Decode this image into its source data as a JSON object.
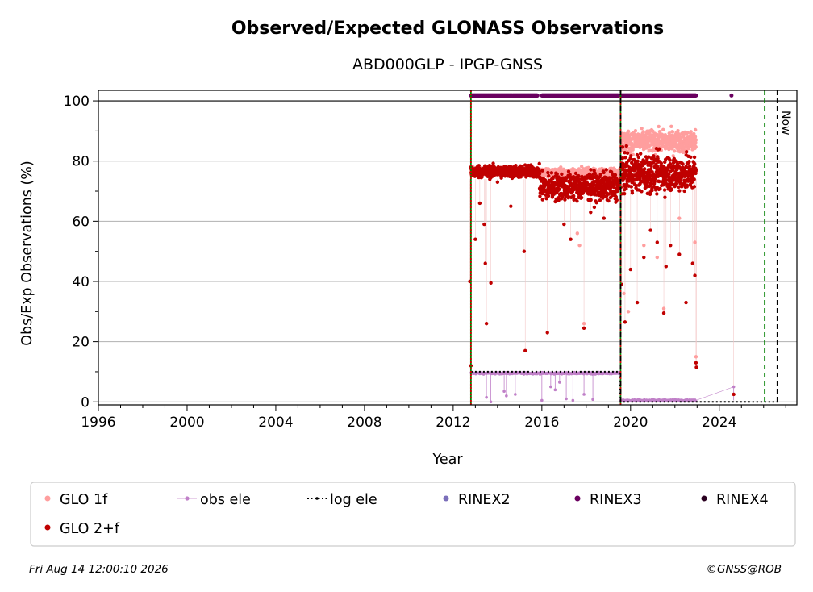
{
  "chart_data": {
    "type": "scatter",
    "title": "Observed/Expected GLONASS Observations",
    "subtitle": "ABD000GLP - IPGP-GNSS",
    "xlabel": "Year",
    "ylabel": "Obs/Exp Observations (%)",
    "xlim": [
      1996,
      2027.5
    ],
    "ylim": [
      -1,
      103.5
    ],
    "x_ticks": [
      1996,
      2000,
      2004,
      2008,
      2012,
      2016,
      2020,
      2024
    ],
    "y_ticks": [
      0,
      20,
      40,
      60,
      80,
      100
    ],
    "grid": "y-major",
    "reference_line_y": 100,
    "event_lines": [
      {
        "x": 2012.8,
        "color": "#008000",
        "style": "solid"
      },
      {
        "x": 2012.8,
        "color": "#cc0000",
        "style": "dotted"
      },
      {
        "x": 2019.55,
        "color": "#008000",
        "style": "solid"
      },
      {
        "x": 2019.55,
        "color": "#cc0000",
        "style": "dotted"
      },
      {
        "x": 2019.55,
        "color": "#000000",
        "style": "dashed"
      },
      {
        "x": 2026.05,
        "color": "#008000",
        "style": "dashed"
      },
      {
        "x": 2026.62,
        "color": "#000000",
        "style": "dashed",
        "label": "Now"
      }
    ],
    "series": [
      {
        "name": "GLO 1f",
        "color": "#ff9e9e",
        "marker": "dot",
        "segments": [
          {
            "x0": 2012.8,
            "x1": 2015.9,
            "y": 76.5,
            "spread": 1.2
          },
          {
            "x0": 2015.9,
            "x1": 2019.5,
            "y": 76.0,
            "spread": 1.5
          },
          {
            "x0": 2019.55,
            "x1": 2022.95,
            "y": 86.5,
            "spread": 3.5
          }
        ],
        "outliers": [
          [
            2016.2,
            68
          ],
          [
            2017.6,
            56
          ],
          [
            2017.7,
            52
          ],
          [
            2017.9,
            26
          ],
          [
            2019.7,
            36
          ],
          [
            2019.9,
            30
          ],
          [
            2020.6,
            52
          ],
          [
            2021.2,
            48
          ],
          [
            2021.5,
            31
          ],
          [
            2022.2,
            61
          ],
          [
            2022.9,
            53
          ],
          [
            2022.95,
            15
          ]
        ]
      },
      {
        "name": "GLO 2+f",
        "color": "#c00000",
        "marker": "dot",
        "segments": [
          {
            "x0": 2012.8,
            "x1": 2015.9,
            "y": 76.5,
            "spread": 2.0
          },
          {
            "x0": 2015.9,
            "x1": 2019.5,
            "y": 71.5,
            "spread": 4.5
          },
          {
            "x0": 2019.55,
            "x1": 2022.95,
            "y": 76.0,
            "spread": 6.0
          }
        ],
        "outliers": [
          [
            2012.75,
            40
          ],
          [
            2012.8,
            12
          ],
          [
            2013.0,
            54
          ],
          [
            2013.2,
            66
          ],
          [
            2013.4,
            59
          ],
          [
            2013.45,
            46
          ],
          [
            2013.5,
            26
          ],
          [
            2013.7,
            39.5
          ],
          [
            2014.0,
            73
          ],
          [
            2014.6,
            65
          ],
          [
            2015.2,
            50
          ],
          [
            2015.25,
            17
          ],
          [
            2016.25,
            23
          ],
          [
            2017.0,
            59
          ],
          [
            2017.3,
            54
          ],
          [
            2017.9,
            24.5
          ],
          [
            2018.2,
            63
          ],
          [
            2018.8,
            61
          ],
          [
            2019.6,
            39
          ],
          [
            2019.75,
            26.5
          ],
          [
            2020.0,
            44
          ],
          [
            2020.3,
            33
          ],
          [
            2020.6,
            48
          ],
          [
            2020.9,
            57
          ],
          [
            2021.2,
            53
          ],
          [
            2021.5,
            29.5
          ],
          [
            2021.6,
            45
          ],
          [
            2021.8,
            52
          ],
          [
            2022.2,
            49
          ],
          [
            2022.5,
            33
          ],
          [
            2022.8,
            46
          ],
          [
            2022.9,
            42
          ],
          [
            2022.95,
            13
          ],
          [
            2022.97,
            11.5
          ],
          [
            2024.65,
            2.5
          ]
        ]
      },
      {
        "name": "obs ele",
        "color": "#c080c8",
        "marker": "line-dot",
        "segments": [
          {
            "x0": 2012.8,
            "x1": 2019.5,
            "y": 9.5,
            "spread": 0.6
          },
          {
            "x0": 2019.55,
            "x1": 2022.95,
            "y": 0.5,
            "spread": 0.5
          }
        ],
        "outliers": [
          [
            2013.5,
            1.5
          ],
          [
            2013.7,
            0
          ],
          [
            2014.3,
            3.5
          ],
          [
            2014.4,
            2
          ],
          [
            2014.8,
            2.5
          ],
          [
            2016.0,
            0.5
          ],
          [
            2016.4,
            5
          ],
          [
            2016.6,
            4
          ],
          [
            2016.8,
            6.5
          ],
          [
            2017.1,
            1
          ],
          [
            2017.4,
            0.5
          ],
          [
            2017.9,
            2.5
          ],
          [
            2018.3,
            0.8
          ],
          [
            2024.65,
            5
          ]
        ]
      },
      {
        "name": "log ele",
        "color": "#000000",
        "marker": "dotted-line",
        "steps": [
          [
            2012.8,
            10
          ],
          [
            2019.5,
            10
          ],
          [
            2019.55,
            0
          ],
          [
            2026.62,
            0
          ]
        ]
      },
      {
        "name": "RINEX2",
        "color": "#7b6fba",
        "marker": "dot"
      },
      {
        "name": "RINEX3",
        "color": "#6a0060",
        "marker": "dot",
        "y": 101.8,
        "ranges": [
          [
            2012.8,
            2015.8
          ],
          [
            2016.0,
            2019.45
          ],
          [
            2019.55,
            2022.95
          ]
        ],
        "points": [
          [
            2024.55,
            101.8
          ]
        ]
      },
      {
        "name": "RINEX4",
        "color": "#2a0020",
        "marker": "dot"
      }
    ]
  },
  "legend": {
    "items": [
      {
        "label": "GLO 1f",
        "color": "#ff9e9e",
        "kind": "dot"
      },
      {
        "label": "obs ele",
        "color": "#c080c8",
        "kind": "line-dot"
      },
      {
        "label": "log ele",
        "color": "#000000",
        "kind": "dotted-line"
      },
      {
        "label": "RINEX2",
        "color": "#7b6fba",
        "kind": "dot"
      },
      {
        "label": "RINEX3",
        "color": "#6a0060",
        "kind": "dot"
      },
      {
        "label": "RINEX4",
        "color": "#2a0020",
        "kind": "dot"
      },
      {
        "label": "GLO 2+f",
        "color": "#c00000",
        "kind": "dot"
      }
    ]
  },
  "now_label": "Now",
  "footer": {
    "timestamp": "Fri Aug 14 12:00:10 2026",
    "credit": "©GNSS@ROB"
  }
}
